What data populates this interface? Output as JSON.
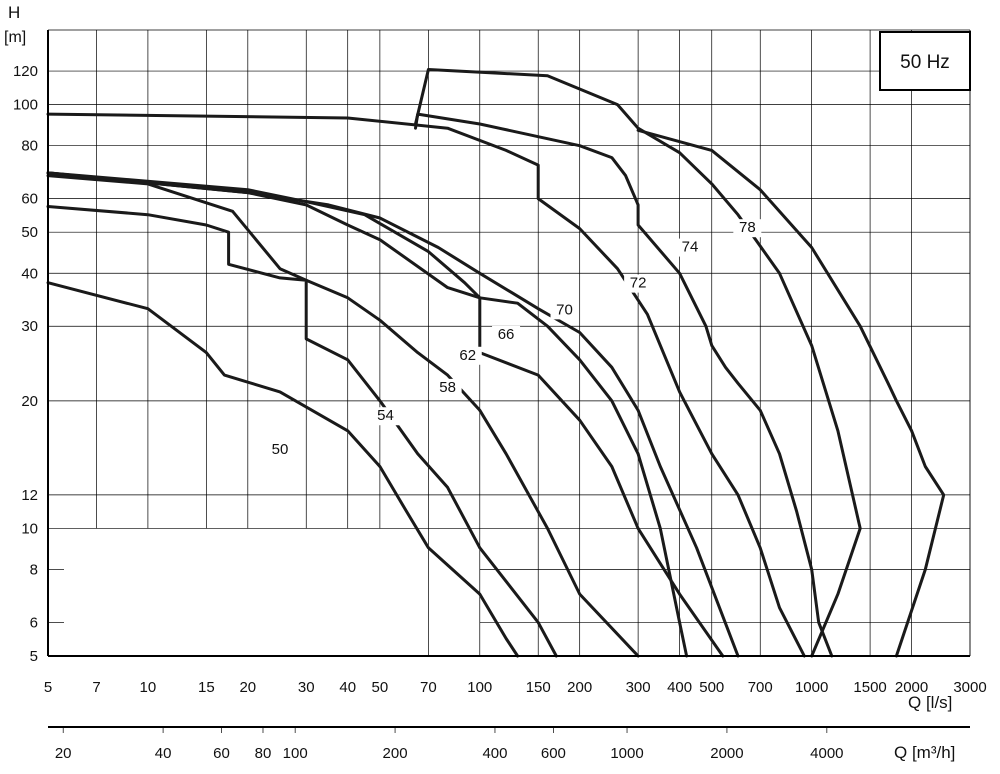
{
  "chart_data": {
    "type": "line",
    "y_axis_label": "H",
    "y_axis_unit": "[m]",
    "x_axis_label": "Q [l/s]",
    "x2_axis_label": "Q [m³/h]",
    "frequency_label": "50 Hz",
    "x_scale": "log",
    "y_scale": "log",
    "xlim": [
      5,
      3000
    ],
    "ylim": [
      5,
      150
    ],
    "grid": true,
    "x_ticks": [
      5,
      7,
      10,
      15,
      20,
      30,
      40,
      50,
      70,
      100,
      150,
      200,
      300,
      400,
      500,
      700,
      1000,
      1500,
      2000,
      3000
    ],
    "x_tick_labels": [
      "5",
      "7",
      "10",
      "15",
      "20",
      "30",
      "40",
      "50",
      "70",
      "100",
      "150",
      "200",
      "300",
      "400",
      "500",
      "700",
      "1000",
      "1500",
      "2000",
      "3000"
    ],
    "y_ticks": [
      5,
      6,
      8,
      10,
      12,
      20,
      30,
      40,
      50,
      60,
      80,
      100,
      120
    ],
    "y_tick_labels": [
      "5",
      "6",
      "8",
      "10",
      "12",
      "20",
      "30",
      "40",
      "50",
      "60",
      "80",
      "100",
      "120"
    ],
    "x2_ticks_m3h": [
      20,
      40,
      60,
      80,
      100,
      200,
      400,
      600,
      1000,
      2000,
      4000
    ],
    "x2_tick_labels": [
      "20",
      "40",
      "60",
      "80",
      "100",
      "200",
      "400",
      "600",
      "1000",
      "2000",
      "4000"
    ],
    "series": [
      {
        "name": "50",
        "label_at": [
          25,
          15
        ],
        "points": [
          [
            5,
            38
          ],
          [
            10,
            33
          ],
          [
            15,
            26
          ],
          [
            17,
            23
          ],
          [
            25,
            21
          ],
          [
            40,
            17
          ],
          [
            50,
            14
          ],
          [
            60,
            11
          ],
          [
            70,
            9
          ],
          [
            100,
            7
          ],
          [
            120,
            5.5
          ],
          [
            130,
            5
          ]
        ]
      },
      {
        "name": "54",
        "label_at": [
          52,
          18
        ],
        "points": [
          [
            5,
            57.5
          ],
          [
            10,
            55
          ],
          [
            15,
            52
          ],
          [
            17.5,
            50
          ],
          [
            17.5,
            42
          ],
          [
            25,
            39
          ],
          [
            30,
            38.5
          ],
          [
            30,
            28
          ],
          [
            40,
            25
          ],
          [
            50,
            20
          ],
          [
            65,
            15
          ],
          [
            80,
            12.5
          ],
          [
            100,
            9
          ],
          [
            150,
            6
          ],
          [
            170,
            5
          ]
        ]
      },
      {
        "name": "58",
        "label_at": [
          80,
          21
        ],
        "points": [
          [
            5,
            68
          ],
          [
            10,
            65
          ],
          [
            18,
            56
          ],
          [
            25,
            41
          ],
          [
            30,
            38.5
          ],
          [
            40,
            35
          ],
          [
            50,
            31
          ],
          [
            65,
            26
          ],
          [
            80,
            23
          ],
          [
            100,
            19
          ],
          [
            120,
            15
          ],
          [
            160,
            10
          ],
          [
            200,
            7
          ],
          [
            300,
            5
          ]
        ]
      },
      {
        "name": "62",
        "label_at": [
          92,
          25
        ],
        "points": [
          [
            5,
            69
          ],
          [
            20,
            62
          ],
          [
            30,
            58
          ],
          [
            40,
            52
          ],
          [
            50,
            48
          ],
          [
            80,
            37
          ],
          [
            100,
            35
          ],
          [
            100,
            26
          ],
          [
            150,
            23
          ],
          [
            200,
            18
          ],
          [
            250,
            14
          ],
          [
            300,
            10
          ],
          [
            400,
            7
          ],
          [
            540,
            5
          ]
        ]
      },
      {
        "name": "66",
        "label_at": [
          120,
          28
        ],
        "points": [
          [
            5,
            69
          ],
          [
            20,
            63
          ],
          [
            30,
            59
          ],
          [
            45,
            55
          ],
          [
            70,
            45
          ],
          [
            90,
            38
          ],
          [
            100,
            35
          ],
          [
            130,
            34
          ],
          [
            160,
            30
          ],
          [
            200,
            25
          ],
          [
            250,
            20
          ],
          [
            300,
            15
          ],
          [
            350,
            10
          ],
          [
            400,
            6
          ],
          [
            420,
            5
          ]
        ]
      },
      {
        "name": "70",
        "label_at": [
          180,
          32
        ],
        "points": [
          [
            5,
            69
          ],
          [
            20,
            62
          ],
          [
            35,
            58
          ],
          [
            50,
            54
          ],
          [
            75,
            46
          ],
          [
            100,
            40
          ],
          [
            125,
            36
          ],
          [
            150,
            33
          ],
          [
            200,
            29
          ],
          [
            250,
            24
          ],
          [
            300,
            19
          ],
          [
            350,
            14
          ],
          [
            450,
            9
          ],
          [
            600,
            5
          ]
        ]
      },
      {
        "name": "72",
        "label_at": [
          300,
          37
        ],
        "points": [
          [
            5,
            95
          ],
          [
            40,
            93
          ],
          [
            80,
            88
          ],
          [
            120,
            78
          ],
          [
            150,
            72
          ],
          [
            150,
            60
          ],
          [
            200,
            51
          ],
          [
            260,
            41
          ],
          [
            320,
            32
          ],
          [
            400,
            21
          ],
          [
            500,
            15
          ],
          [
            600,
            12
          ],
          [
            700,
            9
          ],
          [
            800,
            6.5
          ],
          [
            950,
            5
          ]
        ]
      },
      {
        "name": "74",
        "label_at": [
          430,
          45
        ],
        "points": [
          [
            64,
            88
          ],
          [
            65,
            95
          ],
          [
            100,
            90
          ],
          [
            200,
            80
          ],
          [
            250,
            75
          ],
          [
            275,
            68
          ],
          [
            300,
            58
          ],
          [
            300,
            52
          ],
          [
            400,
            40
          ],
          [
            480,
            30
          ],
          [
            500,
            27
          ],
          [
            550,
            24
          ],
          [
            600,
            22
          ],
          [
            700,
            19
          ],
          [
            800,
            15
          ],
          [
            900,
            11
          ],
          [
            1000,
            8
          ],
          [
            1050,
            6
          ],
          [
            1150,
            5
          ]
        ]
      },
      {
        "name": "78",
        "label_at": [
          640,
          50
        ],
        "points": [
          [
            64,
            90
          ],
          [
            70,
            121
          ],
          [
            160,
            117
          ],
          [
            260,
            100
          ],
          [
            300,
            88
          ],
          [
            400,
            77
          ],
          [
            500,
            65
          ],
          [
            600,
            55
          ],
          [
            800,
            40
          ],
          [
            1000,
            27
          ],
          [
            1200,
            17
          ],
          [
            1400,
            10
          ],
          [
            1200,
            7
          ],
          [
            1000,
            5
          ]
        ]
      },
      {
        "name": "",
        "label_at": null,
        "points": [
          [
            300,
            87
          ],
          [
            500,
            78
          ],
          [
            700,
            63
          ],
          [
            1000,
            46
          ],
          [
            1400,
            30
          ],
          [
            1700,
            22
          ],
          [
            1800,
            20
          ],
          [
            2000,
            17
          ],
          [
            2200,
            14
          ],
          [
            2500,
            12
          ],
          [
            2200,
            8
          ],
          [
            1800,
            5
          ]
        ]
      }
    ]
  }
}
